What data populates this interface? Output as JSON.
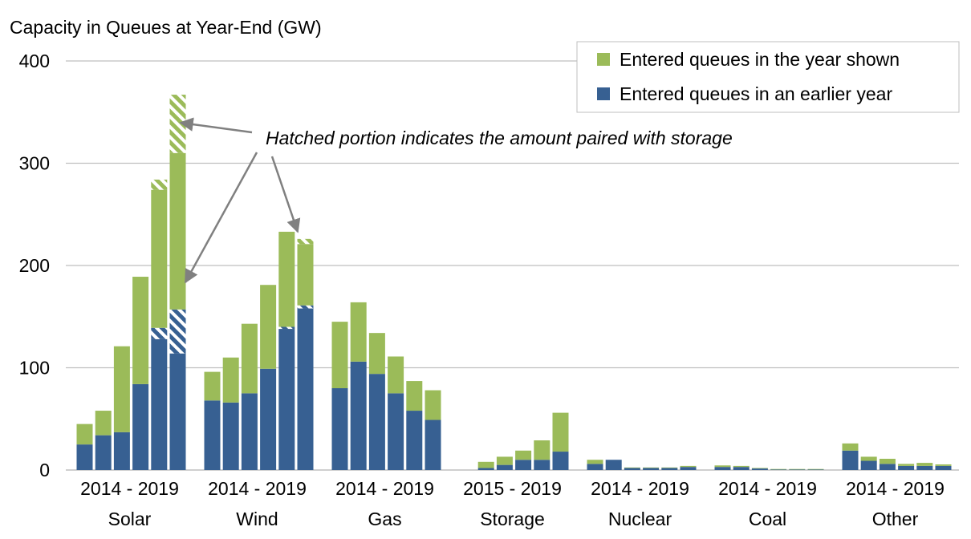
{
  "chart_data": {
    "type": "bar",
    "stacked": true,
    "ylabel": "Capacity in Queues at Year-End (GW)",
    "ylim": [
      0,
      400
    ],
    "yticks": [
      0,
      100,
      200,
      300,
      400
    ],
    "grid": true,
    "legend_position": "top-right",
    "annotation": "Hatched portion indicates the amount paired with storage",
    "colors": {
      "year_shown": "#9bbb59",
      "earlier_year": "#376092",
      "grid": "#bfbfbf",
      "arrow": "#808080"
    },
    "series": [
      {
        "name": "Entered queues in the year shown",
        "color": "#9bbb59"
      },
      {
        "name": "Entered queues in an earlier year",
        "color": "#376092"
      }
    ],
    "groups": [
      {
        "name": "Solar",
        "range_label": "2014 - 2019",
        "bars": [
          {
            "year": 2014,
            "earlier": 25,
            "shown": 20
          },
          {
            "year": 2015,
            "earlier": 34,
            "shown": 24
          },
          {
            "year": 2016,
            "earlier": 37,
            "shown": 84
          },
          {
            "year": 2017,
            "earlier": 84,
            "shown": 105
          },
          {
            "year": 2018,
            "earlier": 139,
            "shown": 145,
            "earlier_storage": 11,
            "shown_storage": 10
          },
          {
            "year": 2019,
            "earlier": 157,
            "shown": 210,
            "earlier_storage": 43,
            "shown_storage": 57
          }
        ]
      },
      {
        "name": "Wind",
        "range_label": "2014 - 2019",
        "bars": [
          {
            "year": 2014,
            "earlier": 68,
            "shown": 28
          },
          {
            "year": 2015,
            "earlier": 66,
            "shown": 44
          },
          {
            "year": 2016,
            "earlier": 75,
            "shown": 68
          },
          {
            "year": 2017,
            "earlier": 99,
            "shown": 82
          },
          {
            "year": 2018,
            "earlier": 140,
            "shown": 93,
            "earlier_storage": 2,
            "shown_storage": 0
          },
          {
            "year": 2019,
            "earlier": 161,
            "shown": 65,
            "earlier_storage": 3,
            "shown_storage": 5
          }
        ]
      },
      {
        "name": "Gas",
        "range_label": "2014 - 2019",
        "bars": [
          {
            "year": 2014,
            "earlier": 80,
            "shown": 65
          },
          {
            "year": 2015,
            "earlier": 106,
            "shown": 58
          },
          {
            "year": 2016,
            "earlier": 94,
            "shown": 40
          },
          {
            "year": 2017,
            "earlier": 75,
            "shown": 36
          },
          {
            "year": 2018,
            "earlier": 58,
            "shown": 29
          },
          {
            "year": 2019,
            "earlier": 49,
            "shown": 29
          }
        ]
      },
      {
        "name": "Storage",
        "range_label": "2015 - 2019",
        "bars": [
          {
            "year": 2015,
            "earlier": 2,
            "shown": 6
          },
          {
            "year": 2016,
            "earlier": 5,
            "shown": 8
          },
          {
            "year": 2017,
            "earlier": 10,
            "shown": 9
          },
          {
            "year": 2018,
            "earlier": 10,
            "shown": 19
          },
          {
            "year": 2019,
            "earlier": 18,
            "shown": 38
          }
        ]
      },
      {
        "name": "Nuclear",
        "range_label": "2014 - 2019",
        "bars": [
          {
            "year": 2014,
            "earlier": 6,
            "shown": 4
          },
          {
            "year": 2015,
            "earlier": 10,
            "shown": 0
          },
          {
            "year": 2016,
            "earlier": 2,
            "shown": 0.5
          },
          {
            "year": 2017,
            "earlier": 2,
            "shown": 0.5
          },
          {
            "year": 2018,
            "earlier": 2,
            "shown": 0.5
          },
          {
            "year": 2019,
            "earlier": 3,
            "shown": 1
          }
        ]
      },
      {
        "name": "Coal",
        "range_label": "2014 - 2019",
        "bars": [
          {
            "year": 2014,
            "earlier": 3,
            "shown": 1.5
          },
          {
            "year": 2015,
            "earlier": 3,
            "shown": 1
          },
          {
            "year": 2016,
            "earlier": 1.5,
            "shown": 0.5
          },
          {
            "year": 2017,
            "earlier": 0.5,
            "shown": 0.5
          },
          {
            "year": 2018,
            "earlier": 0.5,
            "shown": 0.5
          },
          {
            "year": 2019,
            "earlier": 0.5,
            "shown": 0.5
          }
        ]
      },
      {
        "name": "Other",
        "range_label": "2014 - 2019",
        "bars": [
          {
            "year": 2014,
            "earlier": 19,
            "shown": 7
          },
          {
            "year": 2015,
            "earlier": 9,
            "shown": 4
          },
          {
            "year": 2016,
            "earlier": 6,
            "shown": 5
          },
          {
            "year": 2017,
            "earlier": 4,
            "shown": 2
          },
          {
            "year": 2018,
            "earlier": 4,
            "shown": 3
          },
          {
            "year": 2019,
            "earlier": 4,
            "shown": 1.5
          }
        ]
      }
    ]
  }
}
